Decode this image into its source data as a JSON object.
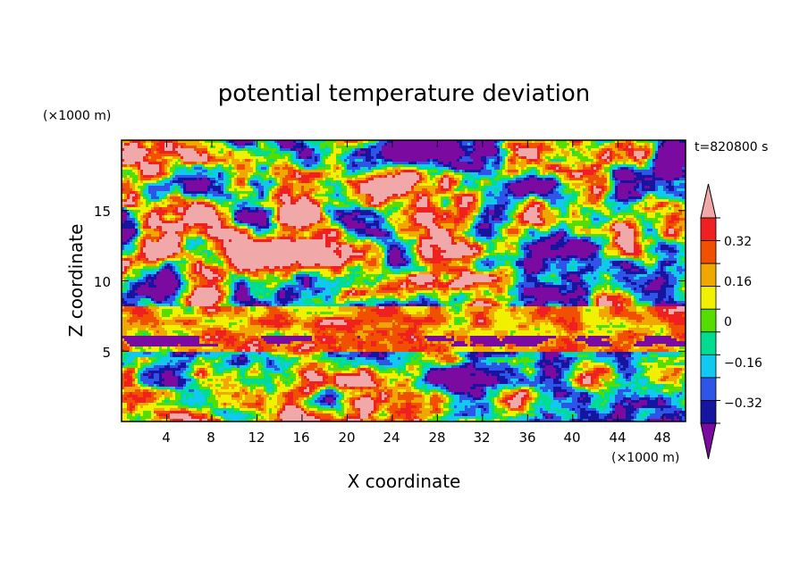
{
  "chart_data": {
    "type": "heatmap",
    "title": "potential temperature deviation",
    "xlabel": "X coordinate",
    "ylabel": "Z coordinate",
    "x_unit": "(×1000 m)",
    "y_unit": "(×1000 m)",
    "time_label": "t=820800 s",
    "xlim": [
      0,
      50
    ],
    "ylim": [
      0,
      20
    ],
    "x_ticks": [
      4,
      8,
      12,
      16,
      20,
      24,
      28,
      32,
      36,
      40,
      44,
      48
    ],
    "y_ticks": [
      5,
      10,
      15
    ],
    "colorbar": {
      "levels": [
        -0.4,
        -0.32,
        -0.24,
        -0.16,
        -0.08,
        0,
        0.08,
        0.16,
        0.24,
        0.32,
        0.4
      ],
      "colors": [
        "#7a0aa0",
        "#1515a0",
        "#2e55e8",
        "#10c8f0",
        "#00dd90",
        "#55dd00",
        "#f0f000",
        "#f0a800",
        "#f05000",
        "#f02020",
        "#f0a8a8"
      ],
      "labeled_ticks": [
        "0.32",
        "0.16",
        "0",
        "-0.16",
        "-0.32"
      ],
      "extend": "both"
    },
    "field_description_bands": [
      {
        "z_range": [
          0,
          5
        ],
        "note": "mixed positive/negative cellular structure"
      },
      {
        "z_range": [
          5,
          8
        ],
        "note": "warm layer"
      },
      {
        "z_range": [
          8,
          20
        ],
        "note": "alternating warm/cold patches"
      }
    ]
  },
  "labels": {
    "title": "potential temperature deviation",
    "xlabel": "X coordinate",
    "ylabel": "Z coordinate",
    "x_unit": "(×1000 m)",
    "y_unit": "(×1000 m)",
    "time_label": "t=820800 s",
    "x_tick_labels": [
      "4",
      "8",
      "12",
      "16",
      "20",
      "24",
      "28",
      "32",
      "36",
      "40",
      "44",
      "48"
    ],
    "y_tick_labels": [
      "5",
      "10",
      "15"
    ],
    "cbar_labels": [
      "0.32",
      "0.16",
      "0",
      "−0.32",
      "−0.16"
    ]
  }
}
